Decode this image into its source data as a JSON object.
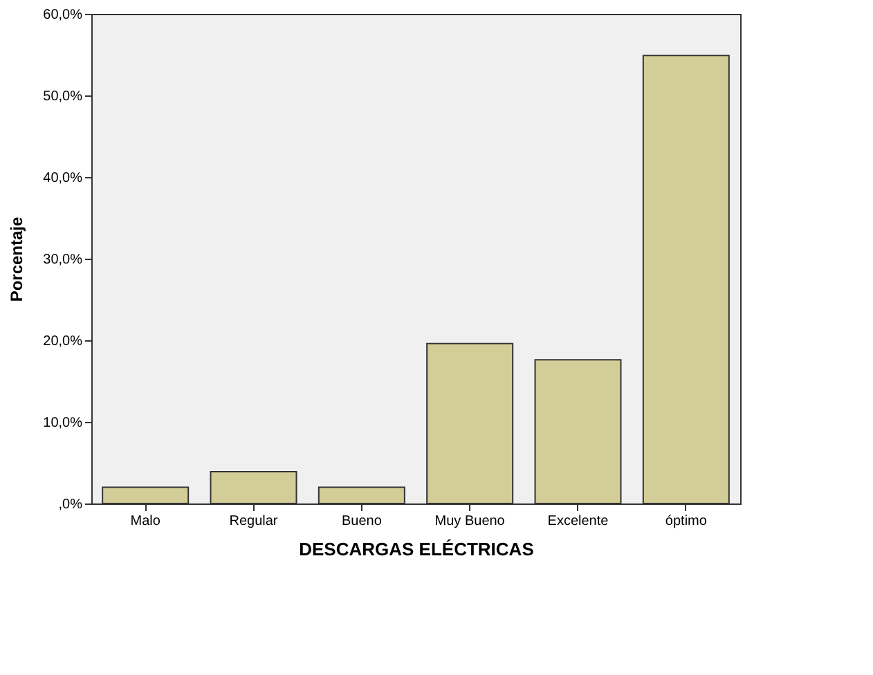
{
  "chart_data": {
    "type": "bar",
    "xlabel": "DESCARGAS ELÉCTRICAS",
    "ylabel": "Porcentaje",
    "categories": [
      "Malo",
      "Regular",
      "Bueno",
      "Muy Bueno",
      "Excelente",
      "óptimo"
    ],
    "values": [
      2.0,
      3.9,
      2.0,
      19.6,
      17.6,
      54.9
    ],
    "color": "#d3ce97",
    "ylim": [
      0,
      60
    ],
    "yticks": [
      {
        "value": 0,
        "label": ",0%"
      },
      {
        "value": 10,
        "label": "10,0%"
      },
      {
        "value": 20,
        "label": "20,0%"
      },
      {
        "value": 30,
        "label": "30,0%"
      },
      {
        "value": 40,
        "label": "40,0%"
      },
      {
        "value": 50,
        "label": "50,0%"
      },
      {
        "value": 60,
        "label": "60,0%"
      }
    ],
    "grid": false,
    "legend": false
  }
}
